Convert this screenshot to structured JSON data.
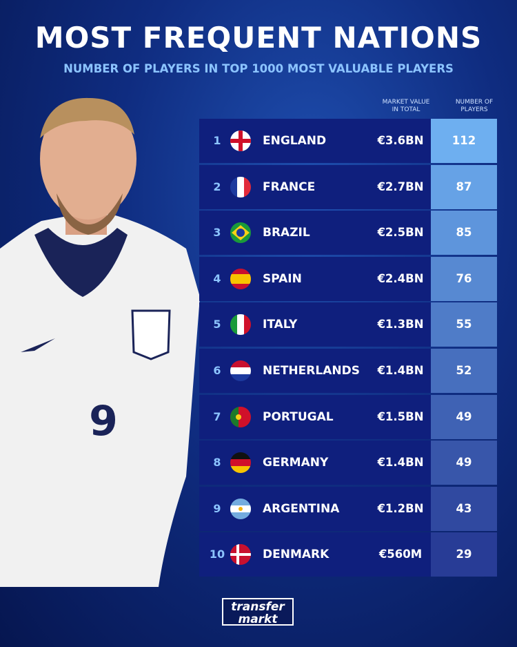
{
  "header": {
    "title": "MOST FREQUENT NATIONS",
    "subtitle": "NUMBER OF PLAYERS IN TOP 1000 MOST VALUABLE PLAYERS"
  },
  "table": {
    "columns": {
      "market_value": [
        "MARKET VALUE",
        "IN TOTAL"
      ],
      "players": [
        "NUMBER OF",
        "PLAYERS"
      ]
    },
    "rows": [
      {
        "rank": 1,
        "country": "ENGLAND",
        "market_value": "€3.6BN",
        "players": 112
      },
      {
        "rank": 2,
        "country": "FRANCE",
        "market_value": "€2.7BN",
        "players": 87
      },
      {
        "rank": 3,
        "country": "BRAZIL",
        "market_value": "€2.5BN",
        "players": 85
      },
      {
        "rank": 4,
        "country": "SPAIN",
        "market_value": "€2.4BN",
        "players": 76
      },
      {
        "rank": 5,
        "country": "ITALY",
        "market_value": "€1.3BN",
        "players": 55
      },
      {
        "rank": 6,
        "country": "NETHERLANDS",
        "market_value": "€1.4BN",
        "players": 52
      },
      {
        "rank": 7,
        "country": "PORTUGAL",
        "market_value": "€1.5BN",
        "players": 49
      },
      {
        "rank": 8,
        "country": "GERMANY",
        "market_value": "€1.4BN",
        "players": 49
      },
      {
        "rank": 9,
        "country": "ARGENTINA",
        "market_value": "€1.2BN",
        "players": 43
      },
      {
        "rank": 10,
        "country": "DENMARK",
        "market_value": "€560M",
        "players": 29
      }
    ]
  },
  "logo": [
    "transfer",
    "markt"
  ]
}
